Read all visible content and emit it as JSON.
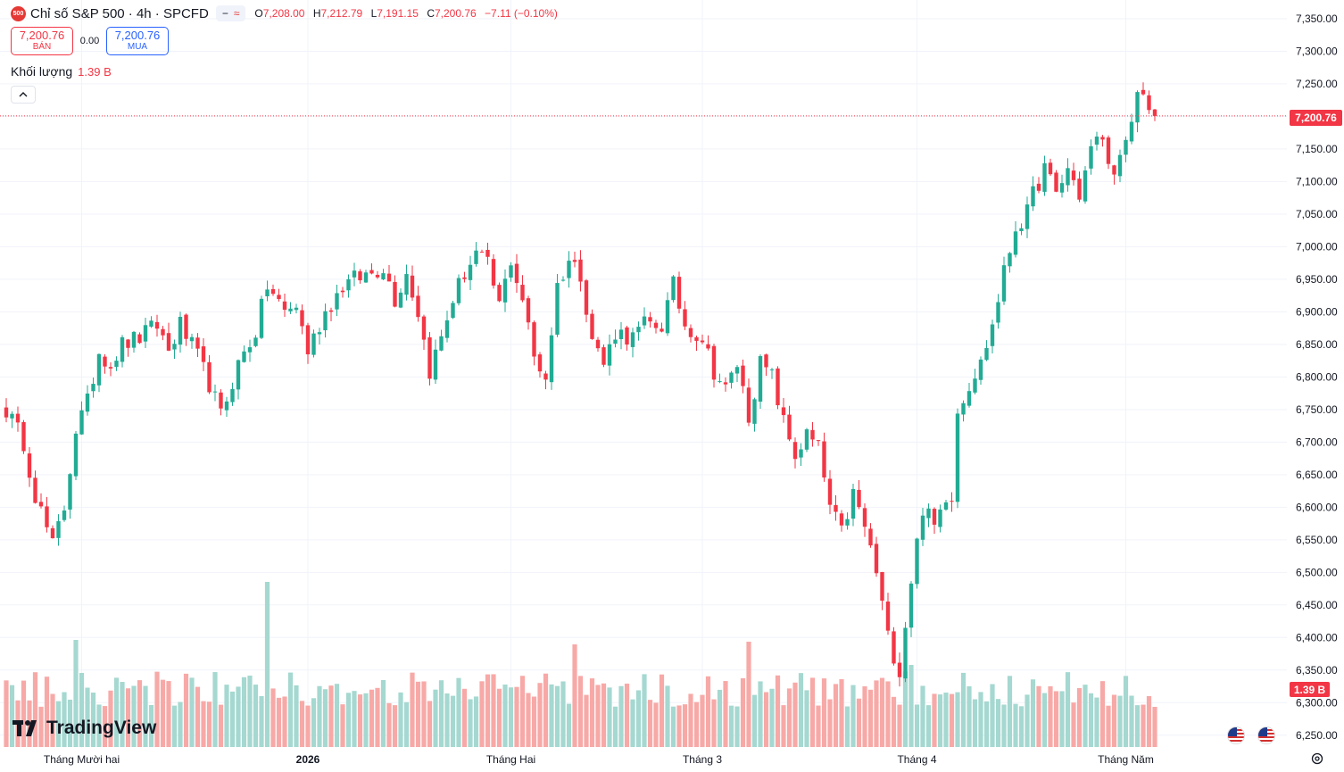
{
  "symbol": {
    "icon_text": "500",
    "title": "Chỉ số S&P 500 · 4h · SPCFD",
    "buttons": [
      "−",
      "≈"
    ]
  },
  "ohlc": {
    "o_label": "O",
    "o": "7,208.00",
    "h_label": "H",
    "h": "7,212.79",
    "l_label": "L",
    "l": "7,191.15",
    "c_label": "C",
    "c": "7,200.76",
    "change": "−7.11 (−0.10%)"
  },
  "trade": {
    "sell_price": "7,200.76",
    "sell_label": "BÁN",
    "spread": "0.00",
    "buy_price": "7,200.76",
    "buy_label": "MUA"
  },
  "volume": {
    "label": "Khối lượng",
    "value": "1.39 B"
  },
  "last_price_tag": "7,200.76",
  "volume_tag": "1.39 B",
  "logo_text": "TradingView",
  "colors": {
    "up": "#22ab94",
    "down": "#f23645",
    "up_vol": "#a5d8d0",
    "down_vol": "#f7a9a7"
  },
  "icons": {
    "collapse": "chevron-up-icon",
    "flag1": "us-flag-icon",
    "flag2": "us-flag-icon",
    "settings": "gear-icon"
  },
  "chart_data": {
    "type": "candlestick",
    "timeframe": "4h",
    "y_ticks": [
      "7,350.00",
      "7,300.00",
      "7,250.00",
      "7,200.00",
      "7,150.00",
      "7,100.00",
      "7,050.00",
      "7,000.00",
      "6,950.00",
      "6,900.00",
      "6,850.00",
      "6,800.00",
      "6,750.00",
      "6,700.00",
      "6,650.00",
      "6,600.00",
      "6,550.00",
      "6,500.00",
      "6,450.00",
      "6,400.00",
      "6,350.00",
      "6,300.00",
      "6,250.00"
    ],
    "ylim": [
      6236,
      7365
    ],
    "x_labels": [
      {
        "text": "Tháng Mười hai",
        "bar": 13,
        "bold": false
      },
      {
        "text": "2026",
        "bar": 52,
        "bold": true
      },
      {
        "text": "Tháng Hai",
        "bar": 87,
        "bold": false
      },
      {
        "text": "Tháng 3",
        "bar": 120,
        "bold": false
      },
      {
        "text": "Tháng 4",
        "bar": 157,
        "bold": false
      },
      {
        "text": "Tháng Năm",
        "bar": 193,
        "bold": false
      }
    ],
    "last_price": 7200.76,
    "anchors": [
      [
        0,
        6750
      ],
      [
        3,
        6700
      ],
      [
        5,
        6620
      ],
      [
        8,
        6540
      ],
      [
        10,
        6600
      ],
      [
        12,
        6720
      ],
      [
        14,
        6760
      ],
      [
        16,
        6840
      ],
      [
        18,
        6820
      ],
      [
        20,
        6850
      ],
      [
        23,
        6860
      ],
      [
        26,
        6880
      ],
      [
        28,
        6840
      ],
      [
        30,
        6880
      ],
      [
        33,
        6830
      ],
      [
        35,
        6790
      ],
      [
        37,
        6740
      ],
      [
        40,
        6820
      ],
      [
        43,
        6870
      ],
      [
        45,
        6940
      ],
      [
        48,
        6900
      ],
      [
        50,
        6910
      ],
      [
        52,
        6840
      ],
      [
        55,
        6900
      ],
      [
        58,
        6940
      ],
      [
        60,
        6950
      ],
      [
        63,
        6960
      ],
      [
        65,
        6970
      ],
      [
        67,
        6920
      ],
      [
        69,
        6960
      ],
      [
        71,
        6900
      ],
      [
        73,
        6810
      ],
      [
        75,
        6860
      ],
      [
        77,
        6920
      ],
      [
        79,
        6960
      ],
      [
        81,
        6990
      ],
      [
        83,
        6970
      ],
      [
        85,
        6910
      ],
      [
        87,
        6980
      ],
      [
        89,
        6920
      ],
      [
        91,
        6830
      ],
      [
        93,
        6800
      ],
      [
        95,
        6940
      ],
      [
        97,
        6980
      ],
      [
        99,
        6960
      ],
      [
        101,
        6860
      ],
      [
        103,
        6820
      ],
      [
        105,
        6870
      ],
      [
        108,
        6860
      ],
      [
        110,
        6880
      ],
      [
        113,
        6880
      ],
      [
        115,
        6940
      ],
      [
        117,
        6880
      ],
      [
        120,
        6860
      ],
      [
        122,
        6810
      ],
      [
        124,
        6780
      ],
      [
        126,
        6820
      ],
      [
        128,
        6740
      ],
      [
        130,
        6820
      ],
      [
        132,
        6800
      ],
      [
        134,
        6730
      ],
      [
        136,
        6680
      ],
      [
        138,
        6710
      ],
      [
        140,
        6690
      ],
      [
        142,
        6600
      ],
      [
        144,
        6560
      ],
      [
        146,
        6620
      ],
      [
        148,
        6570
      ],
      [
        150,
        6500
      ],
      [
        152,
        6400
      ],
      [
        154,
        6350
      ],
      [
        156,
        6490
      ],
      [
        158,
        6600
      ],
      [
        160,
        6570
      ],
      [
        162,
        6620
      ],
      [
        163,
        6620
      ],
      [
        164,
        6750
      ],
      [
        166,
        6790
      ],
      [
        168,
        6820
      ],
      [
        170,
        6880
      ],
      [
        172,
        6960
      ],
      [
        174,
        7030
      ],
      [
        176,
        7050
      ],
      [
        177,
        7080
      ],
      [
        179,
        7120
      ],
      [
        181,
        7080
      ],
      [
        183,
        7120
      ],
      [
        185,
        7080
      ],
      [
        187,
        7150
      ],
      [
        189,
        7170
      ],
      [
        190,
        7120
      ],
      [
        192,
        7130
      ],
      [
        194,
        7180
      ],
      [
        195,
        7240
      ],
      [
        197,
        7220
      ],
      [
        198,
        7200
      ]
    ],
    "volume_range": [
      0,
      1.39
    ]
  }
}
